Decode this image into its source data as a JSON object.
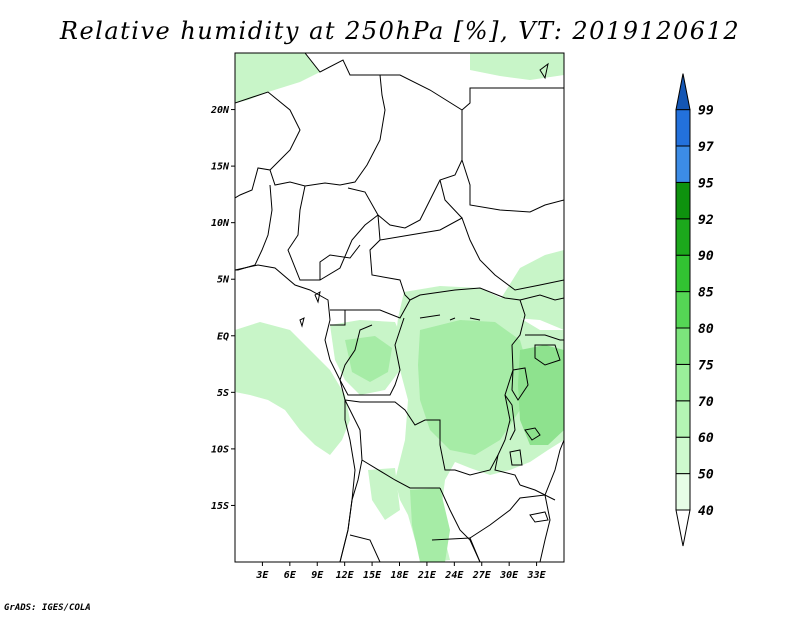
{
  "title": "Relative humidity at 250hPa [%], VT: 2019120612",
  "footer": "GrADS: IGES/COLA",
  "map": {
    "lon_range": [
      0,
      36
    ],
    "lat_range": [
      -20,
      25
    ],
    "lat_ticks": [
      {
        "value": 20,
        "label": "20N"
      },
      {
        "value": 15,
        "label": "15N"
      },
      {
        "value": 10,
        "label": "10N"
      },
      {
        "value": 5,
        "label": "5N"
      },
      {
        "value": 0,
        "label": "EQ"
      },
      {
        "value": -5,
        "label": "5S"
      },
      {
        "value": -10,
        "label": "10S"
      },
      {
        "value": -15,
        "label": "15S"
      }
    ],
    "lon_ticks": [
      {
        "value": 3,
        "label": "3E"
      },
      {
        "value": 6,
        "label": "6E"
      },
      {
        "value": 9,
        "label": "9E"
      },
      {
        "value": 12,
        "label": "12E"
      },
      {
        "value": 15,
        "label": "15E"
      },
      {
        "value": 18,
        "label": "18E"
      },
      {
        "value": 21,
        "label": "21E"
      },
      {
        "value": 24,
        "label": "24E"
      },
      {
        "value": 27,
        "label": "27E"
      },
      {
        "value": 30,
        "label": "30E"
      },
      {
        "value": 33,
        "label": "33E"
      }
    ]
  },
  "colorbar": {
    "levels": [
      "40",
      "50",
      "60",
      "70",
      "75",
      "80",
      "85",
      "90",
      "92",
      "95",
      "97",
      "99"
    ],
    "colors": [
      "#ffffff",
      "#e6fde6",
      "#cdf9cd",
      "#b4f5b4",
      "#9aef9a",
      "#7ce47c",
      "#55d655",
      "#32c332",
      "#1ca81c",
      "#0e920e",
      "#3c8ce6",
      "#2371dc",
      "#1456b4"
    ]
  },
  "colors": {
    "humidity_light": "#c8f5c8",
    "humidity_mid": "#a6eca6",
    "humidity_dark": "#8ee28e",
    "border": "#000000"
  }
}
